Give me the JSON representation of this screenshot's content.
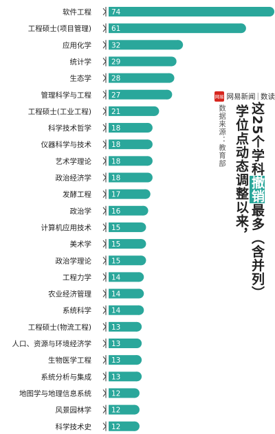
{
  "brand": {
    "logo_text": "网易",
    "name": "网易新闻",
    "separator": "|",
    "section": "数读"
  },
  "title": {
    "line1": {
      "before": "这25个学科",
      "highlight": "撤销",
      "after": "最多（含并列）"
    },
    "line2": "学位点动态调整以来，"
  },
  "source": "数据来源：教育部",
  "colors": {
    "bar": "#2aa79b",
    "highlight_bg": "#2aa79b",
    "brand_red": "#d7261e"
  },
  "chart_data": {
    "type": "bar",
    "orientation": "horizontal",
    "categories": [
      "软件工程",
      "工程硕士(项目管理)",
      "应用化学",
      "统计学",
      "生态学",
      "管理科学与工程",
      "工程硕士(工业工程)",
      "科学技术哲学",
      "仪器科学与技术",
      "艺术学理论",
      "政治经济学",
      "发酵工程",
      "政治学",
      "计算机应用技术",
      "美术学",
      "政治学理论",
      "工程力学",
      "农业经济管理",
      "系统科学",
      "工程硕士(物流工程)",
      "人口、资源与环境经济学",
      "生物医学工程",
      "系统分析与集成",
      "地图学与地理信息系统",
      "风景园林学",
      "科学技术史"
    ],
    "values": [
      74,
      61,
      32,
      29,
      28,
      27,
      21,
      18,
      18,
      18,
      18,
      17,
      16,
      15,
      15,
      15,
      14,
      14,
      14,
      13,
      13,
      13,
      13,
      12,
      12,
      12
    ],
    "data_labels": true,
    "grid": false,
    "legend": "none"
  }
}
